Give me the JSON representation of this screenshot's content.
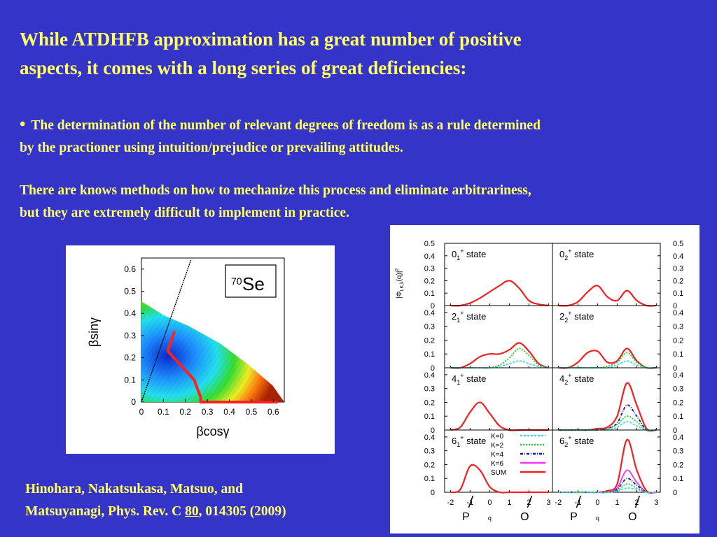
{
  "slide": {
    "heading_line1": "While ATDHFB approximation has a great number of positive",
    "heading_line2": "aspects, it comes with a long series of great deficiencies:",
    "bullet_glyph": "•",
    "bullet_line1": "The determination of the number of relevant degrees of freedom is as a rule determined",
    "bullet_line2": "by the practioner using intuition/prejudice or prevailing attitudes.",
    "para2_line1": "There are knows methods on how to mechanize this process and eliminate arbitrariness,",
    "para2_line2": "but  they are extremely difficult to implement in practice.",
    "citation_line1": "Hinohara, Nakatsukasa, Matsuo, and",
    "citation_line2_pre": "Matsuyanagi, Phys. Rev. C  ",
    "citation_volume": "80",
    "citation_line2_post": ", 014305 (2009)",
    "colors": {
      "background": "#3434c8",
      "text": "#ffff66"
    }
  },
  "chart_data": [
    {
      "type": "heatmap",
      "nucleus_mass": "70",
      "nucleus_symbol": "Se",
      "xlabel": "βcosγ",
      "ylabel": "βsinγ",
      "x_ticks": [
        "0",
        "0.1",
        "0.2",
        "0.3",
        "0.4",
        "0.5",
        "0.6"
      ],
      "y_ticks": [
        "0",
        "0.1",
        "0.2",
        "0.3",
        "0.4",
        "0.5",
        "0.6"
      ],
      "xlim": [
        0,
        0.65
      ],
      "ylim": [
        0,
        0.65
      ],
      "collective_path": [
        [
          0.15,
          0.32
        ],
        [
          0.12,
          0.23
        ],
        [
          0.24,
          0.1
        ],
        [
          0.27,
          0.02
        ],
        [
          0.27,
          0
        ],
        [
          0.62,
          0
        ]
      ],
      "gamma_60_line": true,
      "colors": {
        "path": "#ff2020",
        "line": "#000000"
      }
    },
    {
      "type": "line",
      "ylabel": "|Φ",
      "ylabel_sub": "I,K,k",
      "ylabel_post": "(q)|",
      "ylabel_sup": "2",
      "xlabel": "q",
      "x_ticks": [
        "-2",
        "-1",
        "0",
        "1",
        "2",
        "3"
      ],
      "y_ticks": [
        "0",
        "0.1",
        "0.2",
        "0.3",
        "0.4",
        "0.5"
      ],
      "bottom_markers": [
        "P",
        "O"
      ],
      "xlim": [
        -2.3,
        3.2
      ],
      "legend_placement": "inside-right, 6_1 panel",
      "legend": [
        {
          "label": "K=0",
          "color": "#33dddd",
          "dash": "3,2"
        },
        {
          "label": "K=2",
          "color": "#22cc22",
          "dash": "2,2"
        },
        {
          "label": "K=4",
          "color": "#1111aa",
          "dash": "4,2,1,2"
        },
        {
          "label": "K=6",
          "color": "#ff33ff",
          "dash": ""
        },
        {
          "label": "SUM",
          "color": "#ee2222",
          "dash": ""
        }
      ],
      "x": [
        -2,
        -1.5,
        -1,
        -0.5,
        0,
        0.5,
        1,
        1.5,
        2,
        2.5,
        3
      ],
      "panels": [
        {
          "state": "0",
          "sub": "1",
          "sup": "+",
          "label": " state",
          "ylim": [
            0,
            0.5
          ],
          "tick_side": "left",
          "series": [
            {
              "name": "SUM",
              "values": [
                0,
                0,
                0.02,
                0.06,
                0.11,
                0.16,
                0.2,
                0.14,
                0.04,
                0.01,
                0
              ]
            }
          ]
        },
        {
          "state": "0",
          "sub": "2",
          "sup": "+",
          "label": " state",
          "ylim": [
            0,
            0.5
          ],
          "tick_side": "right",
          "series": [
            {
              "name": "SUM",
              "values": [
                0,
                0,
                0.03,
                0.11,
                0.16,
                0.07,
                0.04,
                0.12,
                0.04,
                0,
                0
              ]
            }
          ]
        },
        {
          "state": "2",
          "sub": "1",
          "sup": "+",
          "label": " state",
          "ylim": [
            0,
            0.45
          ],
          "tick_side": "left",
          "series": [
            {
              "name": "SUM",
              "values": [
                0,
                0,
                0.03,
                0.08,
                0.1,
                0.1,
                0.13,
                0.18,
                0.12,
                0.03,
                0
              ]
            },
            {
              "name": "K=2",
              "values": [
                0,
                0,
                0,
                0,
                0,
                0.02,
                0.07,
                0.14,
                0.09,
                0.02,
                0
              ]
            },
            {
              "name": "K=0",
              "values": [
                0,
                0,
                0,
                0,
                0,
                0.01,
                0.03,
                0.05,
                0.03,
                0.01,
                0
              ]
            }
          ]
        },
        {
          "state": "2",
          "sub": "2",
          "sup": "+",
          "label": " state",
          "ylim": [
            0,
            0.45
          ],
          "tick_side": "right",
          "series": [
            {
              "name": "SUM",
              "values": [
                0,
                0,
                0.04,
                0.11,
                0.12,
                0.04,
                0.05,
                0.14,
                0.05,
                0,
                0
              ]
            },
            {
              "name": "K=2",
              "values": [
                0,
                0,
                0,
                0,
                0,
                0.01,
                0.04,
                0.11,
                0.04,
                0,
                0
              ]
            },
            {
              "name": "K=0",
              "values": [
                0,
                0,
                0,
                0,
                0,
                0,
                0.02,
                0.05,
                0.02,
                0,
                0
              ]
            }
          ]
        },
        {
          "state": "4",
          "sub": "1",
          "sup": "+",
          "label": " state",
          "ylim": [
            0,
            0.45
          ],
          "tick_side": "left",
          "series": [
            {
              "name": "SUM",
              "values": [
                0,
                0.02,
                0.13,
                0.2,
                0.12,
                0.03,
                0,
                0,
                0,
                0,
                0
              ]
            }
          ]
        },
        {
          "state": "4",
          "sub": "2",
          "sup": "+",
          "label": " state",
          "ylim": [
            0,
            0.45
          ],
          "tick_side": "right",
          "series": [
            {
              "name": "SUM",
              "values": [
                0,
                0,
                0,
                0,
                0.01,
                0.02,
                0.1,
                0.34,
                0.18,
                0.01,
                0
              ]
            },
            {
              "name": "K=4",
              "values": [
                0,
                0,
                0,
                0,
                0,
                0.01,
                0.05,
                0.18,
                0.1,
                0,
                0
              ]
            },
            {
              "name": "K=2",
              "values": [
                0,
                0,
                0,
                0,
                0,
                0.01,
                0.04,
                0.1,
                0.06,
                0,
                0
              ]
            },
            {
              "name": "K=0",
              "values": [
                0,
                0,
                0,
                0,
                0,
                0,
                0.02,
                0.06,
                0.03,
                0,
                0
              ]
            }
          ]
        },
        {
          "state": "6",
          "sub": "1",
          "sup": "+",
          "label": " state",
          "ylim": [
            0,
            0.45
          ],
          "tick_side": "left",
          "series": [
            {
              "name": "SUM",
              "values": [
                0,
                0.02,
                0.19,
                0.16,
                0.04,
                0,
                0,
                0,
                0,
                0,
                0
              ]
            }
          ]
        },
        {
          "state": "6",
          "sub": "2",
          "sup": "+",
          "label": " state",
          "ylim": [
            0,
            0.45
          ],
          "tick_side": "right",
          "series": [
            {
              "name": "SUM",
              "values": [
                0,
                0,
                0,
                0,
                0,
                0.01,
                0.06,
                0.38,
                0.16,
                0.01,
                0
              ]
            },
            {
              "name": "K=6",
              "values": [
                0,
                0,
                0,
                0,
                0,
                0,
                0.03,
                0.16,
                0.07,
                0,
                0
              ]
            },
            {
              "name": "K=4",
              "values": [
                0,
                0,
                0,
                0,
                0,
                0,
                0.02,
                0.1,
                0.05,
                0,
                0
              ]
            },
            {
              "name": "K=2",
              "values": [
                0,
                0,
                0,
                0,
                0,
                0,
                0.01,
                0.06,
                0.03,
                0,
                0
              ]
            },
            {
              "name": "K=0",
              "values": [
                0,
                0,
                0,
                0,
                0,
                0,
                0.01,
                0.03,
                0.02,
                0,
                0
              ]
            }
          ]
        }
      ]
    }
  ]
}
